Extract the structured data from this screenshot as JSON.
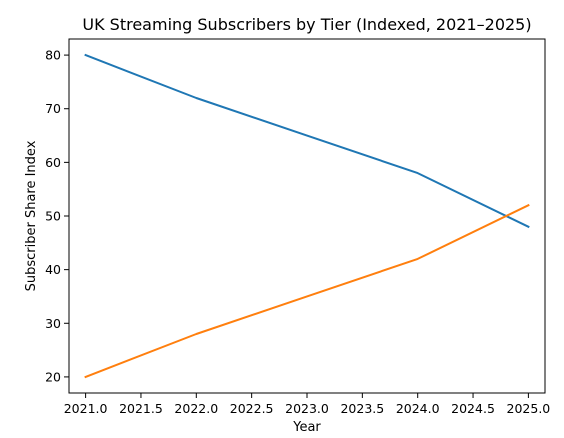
{
  "chart_data": {
    "type": "line",
    "title": "UK Streaming Subscribers by Tier (Indexed, 2021–2025)",
    "xlabel": "Year",
    "ylabel": "Subscriber Share Index",
    "x": [
      2021,
      2022,
      2023,
      2024,
      2025
    ],
    "xlim": [
      2020.85,
      2025.15
    ],
    "ylim": [
      17,
      83
    ],
    "xticks": [
      2021.0,
      2021.5,
      2022.0,
      2022.5,
      2023.0,
      2023.5,
      2024.0,
      2024.5,
      2025.0
    ],
    "xtick_labels": [
      "2021.0",
      "2021.5",
      "2022.0",
      "2022.5",
      "2023.0",
      "2023.5",
      "2024.0",
      "2024.5",
      "2025.0"
    ],
    "yticks": [
      20,
      30,
      40,
      50,
      60,
      70,
      80
    ],
    "ytick_labels": [
      "20",
      "30",
      "40",
      "50",
      "60",
      "70",
      "80"
    ],
    "grid": false,
    "series": [
      {
        "color": "#1f77b4",
        "values": [
          80,
          72,
          65,
          58,
          48
        ]
      },
      {
        "color": "#ff7f0e",
        "values": [
          20,
          28,
          35,
          42,
          52
        ]
      }
    ]
  }
}
